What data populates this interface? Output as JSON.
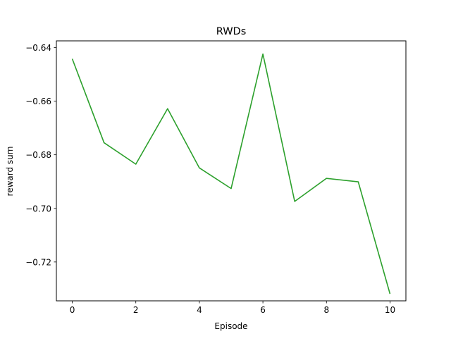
{
  "chart_data": {
    "type": "line",
    "title": "RWDs",
    "xlabel": "Episode",
    "ylabel": "reward sum",
    "xlim": [
      -0.5,
      10.5
    ],
    "ylim": [
      -0.7345,
      -0.6375
    ],
    "xticks": [
      0,
      2,
      4,
      6,
      8,
      10
    ],
    "xtick_labels": [
      "0",
      "2",
      "4",
      "6",
      "8",
      "10"
    ],
    "yticks": [
      -0.64,
      -0.66,
      -0.68,
      -0.7,
      -0.72
    ],
    "ytick_labels": [
      "−0.64",
      "−0.66",
      "−0.68",
      "−0.70",
      "−0.72"
    ],
    "grid": false,
    "legend": "none",
    "series": [
      {
        "color": "#2ca02c",
        "x": [
          0,
          1,
          2,
          3,
          4,
          5,
          6,
          7,
          8,
          9,
          10
        ],
        "y": [
          -0.6442,
          -0.6755,
          -0.6835,
          -0.6628,
          -0.6849,
          -0.6926,
          -0.6424,
          -0.6974,
          -0.6888,
          -0.6901,
          -0.7319
        ]
      }
    ]
  }
}
